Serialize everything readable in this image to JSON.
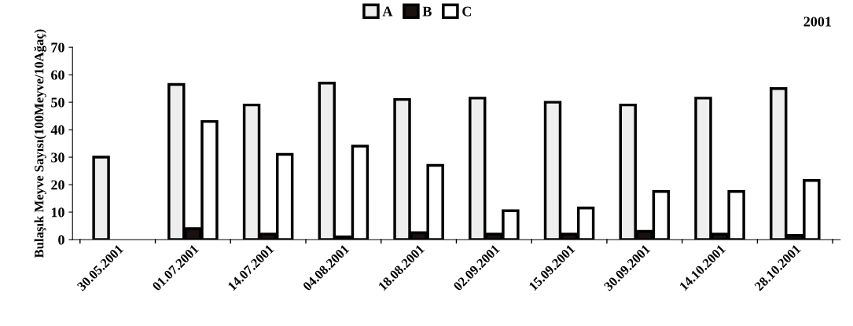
{
  "chart_data": {
    "type": "bar",
    "title": "2001",
    "ylabel": "Bulaşık Meyve Sayısı(100Meyve/10Ağaç)",
    "categories": [
      "30.05.2001",
      "01.07.2001",
      "14.07.2001",
      "04.08.2001",
      "18.08.2001",
      "02.09.2001",
      "15.09.2001",
      "30.09.2001",
      "14.10.2001",
      "28.10.2001"
    ],
    "series": [
      {
        "name": "A",
        "color": "#eeeeee",
        "values": [
          30,
          56.5,
          49,
          57,
          51,
          51.5,
          50,
          49,
          51.5,
          55
        ]
      },
      {
        "name": "B",
        "color": "#1a1010",
        "values": [
          null,
          4,
          2,
          1,
          2.5,
          2,
          2,
          3,
          2,
          1.5
        ]
      },
      {
        "name": "C",
        "color": "#ffffff",
        "values": [
          null,
          43,
          31,
          34,
          27,
          10.5,
          11.5,
          17.5,
          17.5,
          21.5
        ]
      }
    ],
    "ylim": [
      0,
      70
    ],
    "yticks": [
      0,
      10,
      20,
      30,
      40,
      50,
      60,
      70
    ],
    "grid": false,
    "legend": "top"
  }
}
